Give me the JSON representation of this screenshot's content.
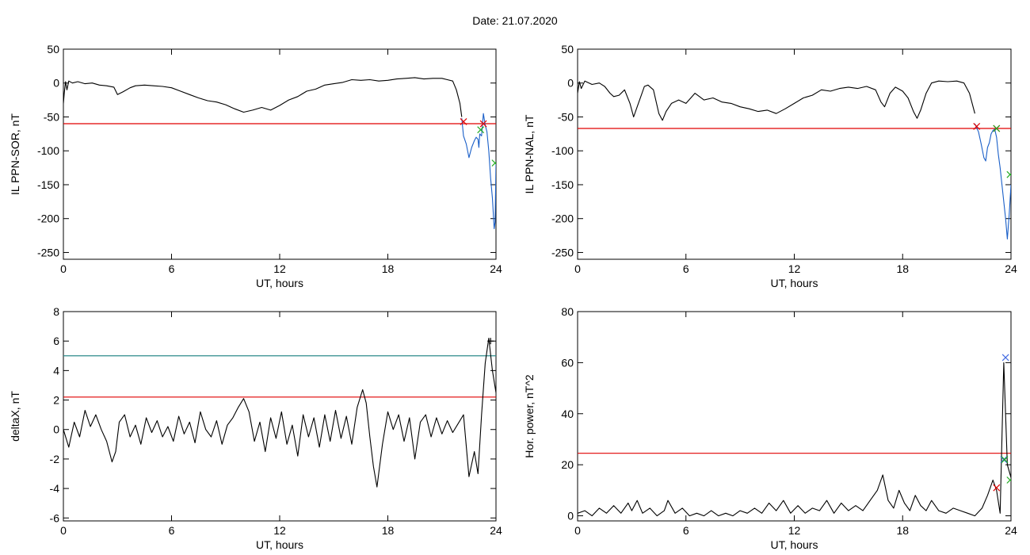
{
  "figure": {
    "date_label": "Date:  21.07.2020"
  },
  "chart_data": [
    {
      "type": "line",
      "xlabel": "UT, hours",
      "ylabel": "IL PPN-SOR, nT",
      "xlim": [
        0,
        24
      ],
      "ylim": [
        -260,
        50
      ],
      "xticks": [
        0,
        6,
        12,
        18,
        24
      ],
      "yticks": [
        50,
        0,
        -50,
        -100,
        -150,
        -200,
        -250
      ],
      "grid": false,
      "series": [
        {
          "color": "#000000",
          "x": [
            0,
            0.05,
            0.12,
            0.2,
            0.3,
            0.5,
            0.8,
            1.2,
            1.6,
            2.0,
            2.4,
            2.8,
            3.0,
            3.3,
            3.7,
            4.0,
            4.5,
            5.0,
            5.5,
            6.0,
            6.5,
            7.0,
            7.5,
            8.0,
            8.5,
            9.0,
            9.5,
            10.0,
            10.5,
            11.0,
            11.5,
            12.0,
            12.5,
            13.0,
            13.5,
            14.0,
            14.5,
            15.0,
            15.5,
            16.0,
            16.5,
            17.0,
            17.5,
            18.0,
            18.5,
            19.0,
            19.5,
            20.0,
            20.5,
            21.0,
            21.3,
            21.6,
            21.8,
            22.0,
            22.1
          ],
          "y": [
            -30,
            -15,
            2,
            -10,
            3,
            0,
            2,
            -1,
            0,
            -3,
            -4,
            -6,
            -17,
            -13,
            -7,
            -4,
            -3,
            -4,
            -5,
            -7,
            -12,
            -17,
            -22,
            -26,
            -28,
            -32,
            -38,
            -43,
            -40,
            -36,
            -40,
            -33,
            -25,
            -20,
            -12,
            -9,
            -3,
            -1,
            1,
            5,
            4,
            5,
            3,
            4,
            6,
            7,
            8,
            6,
            7,
            7,
            5,
            3,
            -10,
            -30,
            -50
          ]
        },
        {
          "color": "#1a5fc8",
          "x": [
            22.1,
            22.2,
            22.35,
            22.5,
            22.65,
            22.8,
            22.9,
            23.0,
            23.05,
            23.1,
            23.2,
            23.3,
            23.4,
            23.5,
            23.6,
            23.7,
            23.8,
            23.9,
            23.95,
            24.0
          ],
          "y": [
            -52,
            -78,
            -90,
            -110,
            -95,
            -85,
            -80,
            -83,
            -95,
            -75,
            -78,
            -45,
            -62,
            -72,
            -100,
            -140,
            -170,
            -215,
            -205,
            -120
          ]
        }
      ],
      "threshold_lines": [
        {
          "y": -60,
          "color": "#e00000"
        }
      ],
      "markers": [
        {
          "x": 22.2,
          "y": -57,
          "color": "#e00000",
          "symbol": "x"
        },
        {
          "x": 23.3,
          "y": -60,
          "color": "#e00000",
          "symbol": "x"
        },
        {
          "x": 23.15,
          "y": -69,
          "color": "#22aa22",
          "symbol": "x"
        },
        {
          "x": 23.95,
          "y": -118,
          "color": "#22aa22",
          "symbol": "x"
        }
      ]
    },
    {
      "type": "line",
      "xlabel": "UT, hours",
      "ylabel": "IL PPN-NAL, nT",
      "xlim": [
        0,
        24
      ],
      "ylim": [
        -260,
        50
      ],
      "xticks": [
        0,
        6,
        12,
        18,
        24
      ],
      "yticks": [
        50,
        0,
        -50,
        -100,
        -150,
        -200,
        -250
      ],
      "grid": false,
      "series": [
        {
          "color": "#000000",
          "x": [
            0,
            0.1,
            0.2,
            0.4,
            0.8,
            1.2,
            1.5,
            1.8,
            2.0,
            2.3,
            2.6,
            2.9,
            3.1,
            3.3,
            3.5,
            3.7,
            3.9,
            4.2,
            4.5,
            4.7,
            4.9,
            5.2,
            5.6,
            6.0,
            6.5,
            7.0,
            7.5,
            8.0,
            8.5,
            9.0,
            9.5,
            10.0,
            10.5,
            11.0,
            11.5,
            12.0,
            12.5,
            13.0,
            13.5,
            14.0,
            14.5,
            15.0,
            15.5,
            16.0,
            16.5,
            16.8,
            17.0,
            17.3,
            17.6,
            18.0,
            18.3,
            18.6,
            18.8,
            19.0,
            19.3,
            19.6,
            20.0,
            20.5,
            21.0,
            21.4,
            21.7,
            22.0
          ],
          "y": [
            -15,
            2,
            -8,
            3,
            -2,
            0,
            -5,
            -15,
            -20,
            -18,
            -10,
            -30,
            -50,
            -35,
            -20,
            -5,
            -3,
            -10,
            -45,
            -55,
            -42,
            -30,
            -25,
            -30,
            -15,
            -25,
            -22,
            -28,
            -30,
            -35,
            -38,
            -42,
            -40,
            -45,
            -38,
            -30,
            -22,
            -18,
            -10,
            -12,
            -8,
            -6,
            -8,
            -5,
            -10,
            -28,
            -35,
            -15,
            -6,
            -12,
            -22,
            -42,
            -52,
            -40,
            -15,
            0,
            3,
            2,
            3,
            0,
            -15,
            -45
          ]
        },
        {
          "color": "#1a5fc8",
          "x": [
            22.0,
            22.2,
            22.35,
            22.5,
            22.6,
            22.7,
            22.8,
            22.9,
            23.0,
            23.1,
            23.2,
            23.3,
            23.4,
            23.5,
            23.6,
            23.7,
            23.8,
            23.9,
            24.0
          ],
          "y": [
            -60,
            -72,
            -90,
            -110,
            -115,
            -95,
            -88,
            -75,
            -70,
            -68,
            -80,
            -105,
            -125,
            -150,
            -175,
            -200,
            -230,
            -195,
            -150
          ]
        }
      ],
      "threshold_lines": [
        {
          "y": -67,
          "color": "#e00000"
        }
      ],
      "markers": [
        {
          "x": 22.1,
          "y": -64,
          "color": "#e00000",
          "symbol": "x"
        },
        {
          "x": 23.2,
          "y": -67,
          "color": "#e00000",
          "symbol": "x"
        },
        {
          "x": 23.2,
          "y": -67,
          "color": "#22aa22",
          "symbol": "x"
        },
        {
          "x": 23.95,
          "y": -135,
          "color": "#22aa22",
          "symbol": "x"
        }
      ]
    },
    {
      "type": "line",
      "xlabel": "UT, hours",
      "ylabel": "deltaX, nT",
      "xlim": [
        0,
        24
      ],
      "ylim": [
        -6.2,
        8
      ],
      "xticks": [
        0,
        6,
        12,
        18,
        24
      ],
      "yticks": [
        8,
        6,
        4,
        2,
        0,
        -2,
        -4,
        -6
      ],
      "grid": false,
      "series": [
        {
          "color": "#000000",
          "x": [
            0,
            0.3,
            0.6,
            0.9,
            1.2,
            1.5,
            1.8,
            2.1,
            2.4,
            2.7,
            2.9,
            3.1,
            3.4,
            3.7,
            4.0,
            4.3,
            4.6,
            4.9,
            5.2,
            5.5,
            5.8,
            6.1,
            6.4,
            6.7,
            7.0,
            7.3,
            7.6,
            7.9,
            8.2,
            8.5,
            8.8,
            9.1,
            9.4,
            9.7,
            10.0,
            10.3,
            10.6,
            10.9,
            11.2,
            11.5,
            11.8,
            12.1,
            12.4,
            12.7,
            13.0,
            13.3,
            13.6,
            13.9,
            14.2,
            14.5,
            14.8,
            15.1,
            15.4,
            15.7,
            16.0,
            16.3,
            16.6,
            16.8,
            17.0,
            17.2,
            17.4,
            17.7,
            18.0,
            18.3,
            18.6,
            18.9,
            19.2,
            19.5,
            19.8,
            20.1,
            20.4,
            20.7,
            21.0,
            21.3,
            21.6,
            21.9,
            22.2,
            22.5,
            22.8,
            23.0,
            23.2,
            23.4,
            23.6,
            23.8,
            24.0
          ],
          "y": [
            0,
            -1.2,
            0.5,
            -0.5,
            1.3,
            0.2,
            1.0,
            0.0,
            -0.8,
            -2.2,
            -1.5,
            0.5,
            1.0,
            -0.5,
            0.3,
            -1.0,
            0.8,
            -0.2,
            0.6,
            -0.5,
            0.2,
            -0.8,
            0.9,
            -0.3,
            0.5,
            -0.9,
            1.2,
            0.0,
            -0.5,
            0.6,
            -1.0,
            0.3,
            0.8,
            1.5,
            2.1,
            1.2,
            -0.8,
            0.5,
            -1.5,
            0.8,
            -0.6,
            1.2,
            -1.0,
            0.3,
            -1.8,
            1.0,
            -0.5,
            0.8,
            -1.2,
            1.0,
            -0.8,
            1.3,
            -0.6,
            0.9,
            -1.0,
            1.5,
            2.7,
            1.8,
            -0.5,
            -2.5,
            -3.9,
            -1.0,
            1.2,
            0.0,
            1.0,
            -0.8,
            0.8,
            -2.0,
            0.5,
            1.0,
            -0.5,
            0.8,
            -0.3,
            0.6,
            -0.2,
            0.4,
            1.0,
            -3.2,
            -1.5,
            -3.0,
            1.0,
            4.5,
            6.2,
            4.0,
            2.5
          ]
        }
      ],
      "threshold_lines": [
        {
          "y": 5,
          "color": "#2e8b8b"
        },
        {
          "y": 2.2,
          "color": "#e00000"
        }
      ],
      "markers": [
        {
          "x": 23.7,
          "y": 6.0,
          "color": "#000000",
          "symbol": "+"
        }
      ]
    },
    {
      "type": "line",
      "xlabel": "UT, hours",
      "ylabel": "Hor. power, nT^2",
      "xlim": [
        0,
        24
      ],
      "ylim": [
        -2,
        80
      ],
      "xticks": [
        0,
        6,
        12,
        18,
        24
      ],
      "yticks": [
        80,
        60,
        40,
        20,
        0
      ],
      "grid": false,
      "series": [
        {
          "color": "#000000",
          "x": [
            0,
            0.4,
            0.8,
            1.2,
            1.6,
            2.0,
            2.4,
            2.8,
            3.0,
            3.3,
            3.6,
            4.0,
            4.4,
            4.8,
            5.0,
            5.4,
            5.8,
            6.2,
            6.6,
            7.0,
            7.4,
            7.8,
            8.2,
            8.6,
            9.0,
            9.4,
            9.8,
            10.2,
            10.6,
            11.0,
            11.4,
            11.8,
            12.2,
            12.6,
            13.0,
            13.4,
            13.8,
            14.2,
            14.6,
            15.0,
            15.4,
            15.8,
            16.2,
            16.6,
            16.9,
            17.2,
            17.5,
            17.8,
            18.1,
            18.4,
            18.7,
            19.0,
            19.3,
            19.6,
            20.0,
            20.4,
            20.8,
            21.2,
            21.6,
            22.0,
            22.4,
            22.7,
            23.0,
            23.2,
            23.4,
            23.6,
            23.8,
            24.0
          ],
          "y": [
            1,
            2,
            0,
            3,
            1,
            4,
            1,
            5,
            2,
            6,
            1,
            3,
            0,
            2,
            6,
            1,
            3,
            0,
            1,
            0,
            2,
            0,
            1,
            0,
            2,
            1,
            3,
            1,
            5,
            2,
            6,
            1,
            4,
            1,
            3,
            2,
            6,
            1,
            5,
            2,
            4,
            2,
            6,
            10,
            16,
            6,
            3,
            10,
            5,
            2,
            8,
            4,
            2,
            6,
            2,
            1,
            3,
            2,
            1,
            0,
            3,
            8,
            14,
            10,
            1,
            60,
            20,
            15
          ]
        }
      ],
      "threshold_lines": [
        {
          "y": 24.5,
          "color": "#e00000"
        }
      ],
      "markers": [
        {
          "x": 23.7,
          "y": 62,
          "color": "#4169e1",
          "symbol": "x"
        },
        {
          "x": 23.6,
          "y": 22,
          "color": "#4169e1",
          "symbol": "x"
        },
        {
          "x": 23.65,
          "y": 22,
          "color": "#22aa22",
          "symbol": "x"
        },
        {
          "x": 23.2,
          "y": 11,
          "color": "#e00000",
          "symbol": "x"
        },
        {
          "x": 23.95,
          "y": 14,
          "color": "#22aa22",
          "symbol": "x"
        }
      ]
    }
  ]
}
